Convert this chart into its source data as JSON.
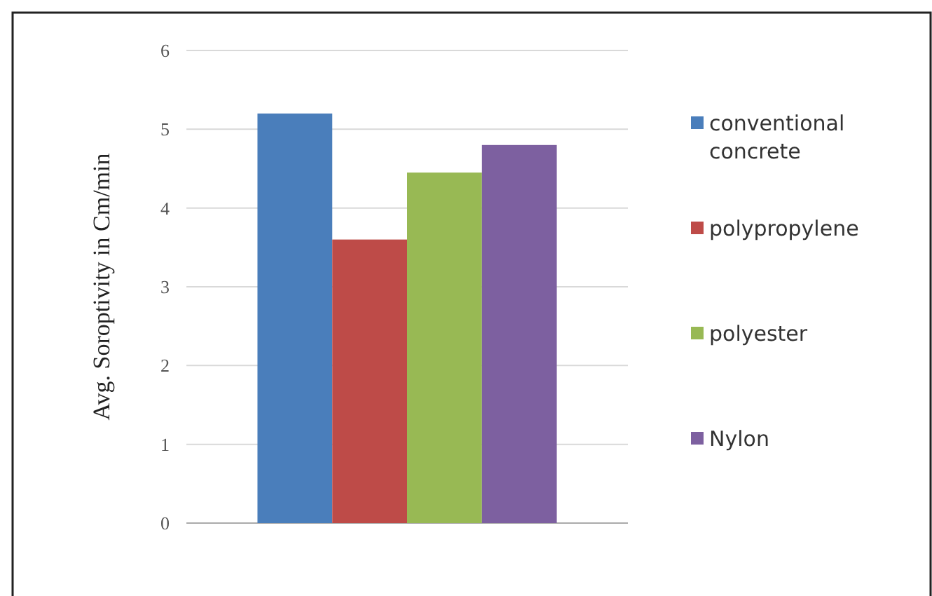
{
  "chart_data": {
    "type": "bar",
    "ylabel": "Avg. Soroptivity in Cm/min",
    "categories": [
      null
    ],
    "series": [
      {
        "name": "conventional concrete",
        "color": "#4a7ebb",
        "values": [
          5.2
        ]
      },
      {
        "name": "polypropylene",
        "color": "#be4b48",
        "values": [
          3.6
        ]
      },
      {
        "name": "polyester",
        "color": "#98b954",
        "values": [
          4.45
        ]
      },
      {
        "name": "Nylon",
        "color": "#7d60a0",
        "values": [
          4.8
        ]
      }
    ],
    "ylim": [
      0,
      6
    ],
    "yticks": [
      0,
      1,
      2,
      3,
      4,
      5,
      6
    ],
    "grid": "y",
    "legend": "right"
  }
}
